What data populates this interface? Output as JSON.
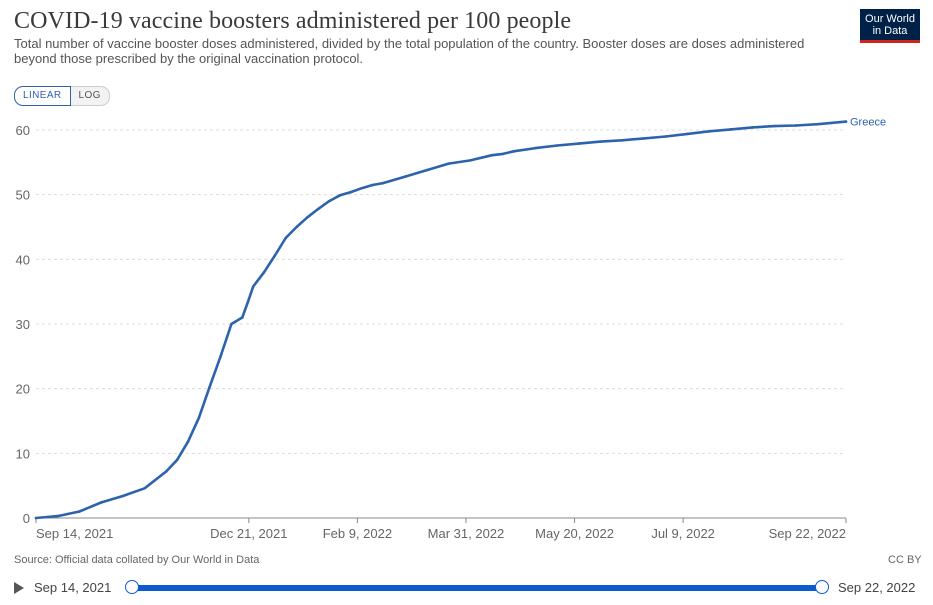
{
  "title": "COVID-19 vaccine boosters administered per 100 people",
  "subtitle": "Total number of vaccine booster doses administered, divided by the total population of the country. Booster doses are doses administered beyond those prescribed by the original vaccination protocol.",
  "logo": {
    "line1": "Our World",
    "line2": "in Data",
    "bg": "#002147",
    "accent": "#ce261e"
  },
  "scale_toggle": {
    "linear": "LINEAR",
    "log": "LOG",
    "active": "LINEAR"
  },
  "source": "Source: Official data collated by Our World in Data",
  "license": "CC BY",
  "timeline": {
    "start": "Sep 14, 2021",
    "end": "Sep 22, 2022",
    "play_icon": "play-icon"
  },
  "colors": {
    "series": "#2d63ad",
    "grid": "#dddddd",
    "axis": "#888888",
    "tick_text": "#666666"
  },
  "chart_data": {
    "type": "line",
    "title": "COVID-19 vaccine boosters administered per 100 people",
    "xlabel": "",
    "ylabel": "",
    "ylim": [
      0,
      60
    ],
    "yticks": [
      0,
      10,
      20,
      30,
      40,
      50,
      60
    ],
    "xlim_day": [
      0,
      373
    ],
    "xticks": [
      {
        "day": 0,
        "label": "Sep 14, 2021"
      },
      {
        "day": 98,
        "label": "Dec 21, 2021"
      },
      {
        "day": 148,
        "label": "Feb 9, 2022"
      },
      {
        "day": 198,
        "label": "Mar 31, 2022"
      },
      {
        "day": 248,
        "label": "May 20, 2022"
      },
      {
        "day": 298,
        "label": "Jul 9, 2022"
      },
      {
        "day": 373,
        "label": "Sep 22, 2022"
      }
    ],
    "grid": true,
    "series": [
      {
        "name": "Greece",
        "x_day": [
          0,
          10,
          20,
          30,
          40,
          50,
          60,
          65,
          70,
          75,
          80,
          85,
          90,
          95,
          98,
          100,
          105,
          110,
          115,
          120,
          125,
          130,
          135,
          140,
          145,
          150,
          155,
          160,
          170,
          180,
          190,
          200,
          210,
          215,
          220,
          230,
          240,
          250,
          260,
          270,
          280,
          290,
          300,
          310,
          320,
          330,
          340,
          350,
          360,
          370,
          373
        ],
        "y": [
          0,
          0.3,
          1.0,
          2.4,
          3.4,
          4.6,
          7.2,
          9.0,
          11.8,
          15.5,
          20.3,
          25.0,
          30.0,
          31.0,
          33.8,
          35.8,
          38.0,
          40.6,
          43.3,
          45.0,
          46.5,
          47.8,
          49.0,
          49.9,
          50.4,
          51.0,
          51.5,
          51.8,
          52.8,
          53.8,
          54.8,
          55.3,
          56.1,
          56.3,
          56.7,
          57.2,
          57.6,
          57.9,
          58.2,
          58.4,
          58.7,
          59.0,
          59.4,
          59.8,
          60.1,
          60.4,
          60.6,
          60.7,
          60.9,
          61.2,
          61.3
        ]
      }
    ]
  }
}
